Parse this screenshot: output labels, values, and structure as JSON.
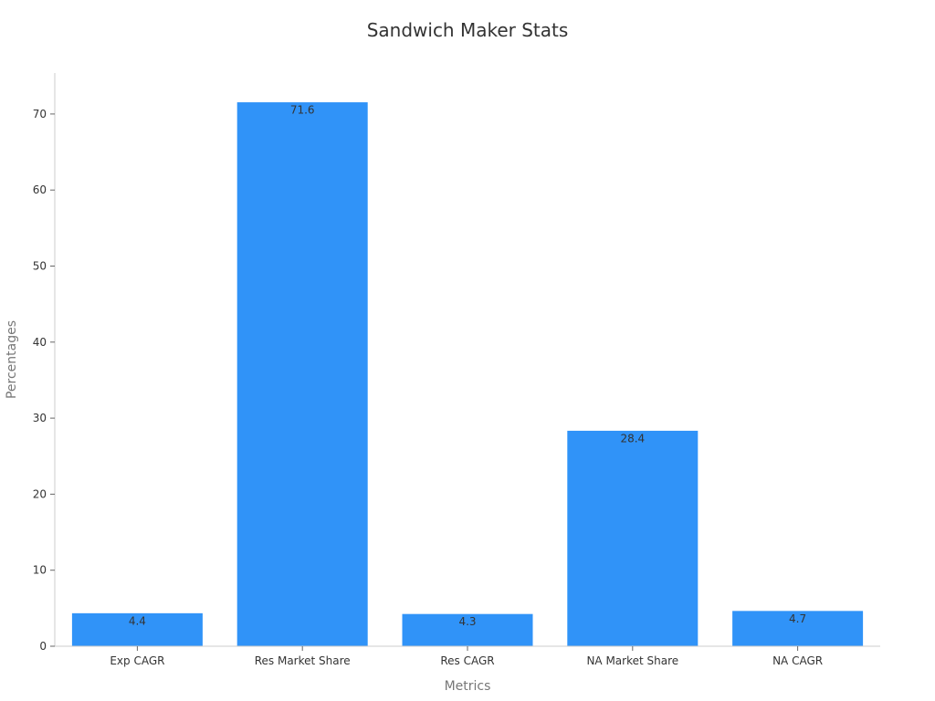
{
  "chart_data": {
    "type": "bar",
    "title": "Sandwich Maker Stats",
    "xlabel": "Metrics",
    "ylabel": "Percentages",
    "categories": [
      "Exp CAGR",
      "Res Market Share",
      "Res CAGR",
      "NA Market Share",
      "NA CAGR"
    ],
    "values": [
      4.4,
      71.6,
      4.3,
      28.4,
      4.7
    ],
    "ylim": [
      0,
      75
    ],
    "yticks": [
      0,
      10,
      20,
      30,
      40,
      50,
      60,
      70
    ],
    "grid": false,
    "legend": "none",
    "bar_color": "#3093F8"
  }
}
